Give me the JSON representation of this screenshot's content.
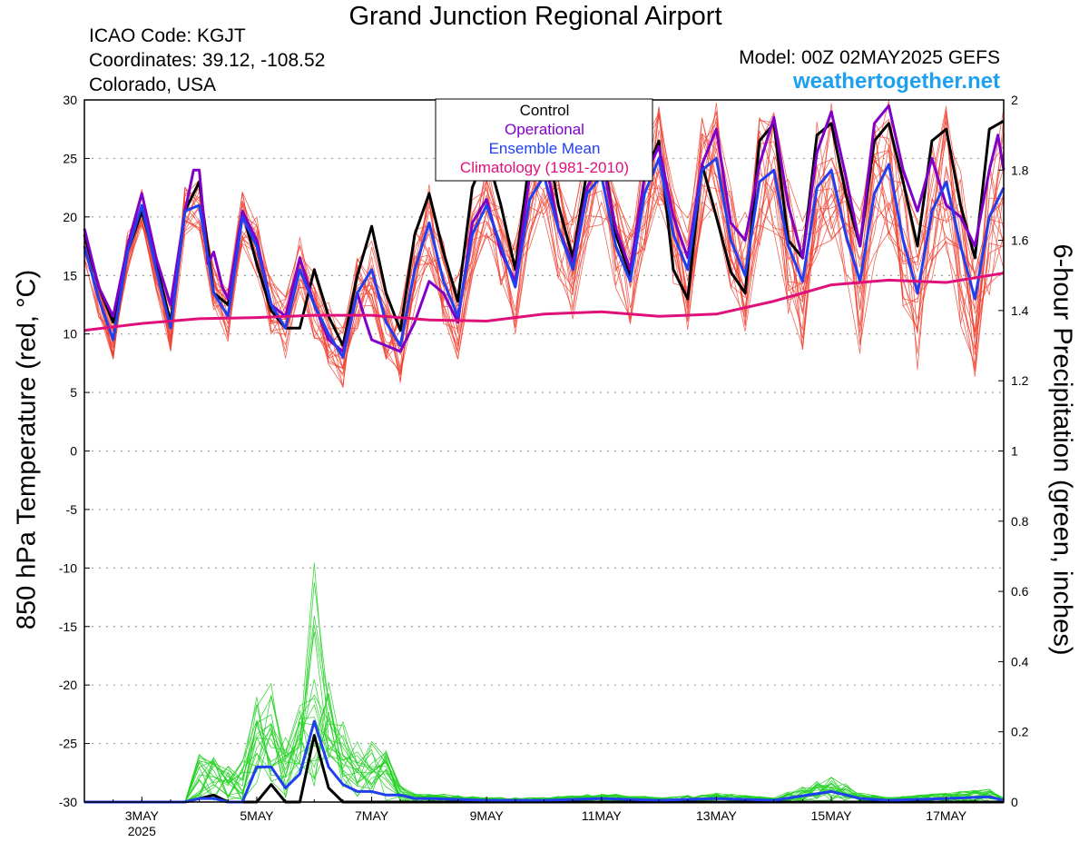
{
  "header": {
    "title": "Grand Junction Regional Airport",
    "icao": "ICAO Code: KGJT",
    "coordinates": "Coordinates: 39.12, -108.52",
    "region": "Colorado, USA",
    "model": "Model: 00Z 02MAY2025 GEFS",
    "website": "weathertogether.net"
  },
  "colors": {
    "control": "#000000",
    "operational": "#8000c8",
    "ensemble_mean": "#2040f0",
    "climatology": "#e0107a",
    "members_temp": "#f04030",
    "members_precip": "#20d020",
    "website": "#1ea0f0"
  },
  "chart_data": {
    "type": "line",
    "xlabel": "",
    "ylabel": "850 hPa Temperature (red, °C)",
    "y2label": "6-hour Precipitation (green, inches)",
    "ylim": [
      -30,
      30
    ],
    "y2lim": [
      0,
      2
    ],
    "xlim": [
      2.0,
      18.0
    ],
    "x_unit": "day of May 2025 (UTC)",
    "x_ticks": [
      {
        "x": 3.0,
        "label": "3MAY",
        "sublabel": "2025"
      },
      {
        "x": 5.0,
        "label": "5MAY"
      },
      {
        "x": 7.0,
        "label": "7MAY"
      },
      {
        "x": 9.0,
        "label": "9MAY"
      },
      {
        "x": 11.0,
        "label": "11MAY"
      },
      {
        "x": 13.0,
        "label": "13MAY"
      },
      {
        "x": 15.0,
        "label": "15MAY"
      },
      {
        "x": 17.0,
        "label": "17MAY"
      }
    ],
    "y_ticks": [
      -30,
      -25,
      -20,
      -15,
      -10,
      -5,
      0,
      5,
      10,
      15,
      20,
      25,
      30
    ],
    "y2_ticks": [
      0,
      0.2,
      0.4,
      0.6,
      0.8,
      1,
      1.2,
      1.4,
      1.6,
      1.8,
      2
    ],
    "grid": true,
    "legend": {
      "placement": "top-center",
      "entries": [
        {
          "label": "Control",
          "color": "#000000"
        },
        {
          "label": "Operational",
          "color": "#8000c8"
        },
        {
          "label": "Ensemble Mean",
          "color": "#2040f0"
        },
        {
          "label": "Climatology (1981-2010)",
          "color": "#e0107a"
        }
      ]
    },
    "temperature_series": [
      {
        "name": "Control",
        "color": "#000000",
        "points": [
          [
            2.0,
            18.5
          ],
          [
            2.25,
            14.0
          ],
          [
            2.5,
            11.0
          ],
          [
            2.75,
            17.0
          ],
          [
            3.0,
            20.5
          ],
          [
            3.25,
            16.0
          ],
          [
            3.5,
            11.0
          ],
          [
            3.75,
            20.5
          ],
          [
            4.0,
            23.0
          ],
          [
            4.25,
            13.5
          ],
          [
            4.5,
            12.5
          ],
          [
            4.75,
            20.5
          ],
          [
            5.0,
            16.0
          ],
          [
            5.25,
            12.0
          ],
          [
            5.5,
            10.5
          ],
          [
            5.75,
            10.5
          ],
          [
            6.0,
            15.5
          ],
          [
            6.25,
            11.5
          ],
          [
            6.5,
            9.0
          ],
          [
            6.75,
            15.0
          ],
          [
            7.0,
            19.2
          ],
          [
            7.25,
            13.5
          ],
          [
            7.5,
            10.3
          ],
          [
            7.75,
            18.5
          ],
          [
            8.0,
            22.0
          ],
          [
            8.25,
            17.0
          ],
          [
            8.5,
            12.8
          ],
          [
            8.75,
            22.5
          ],
          [
            9.0,
            25.5
          ],
          [
            9.25,
            21.0
          ],
          [
            9.5,
            15.5
          ],
          [
            9.75,
            25.0
          ],
          [
            10.0,
            28.0
          ],
          [
            10.25,
            21.0
          ],
          [
            10.5,
            16.5
          ],
          [
            10.75,
            24.0
          ],
          [
            11.0,
            26.0
          ],
          [
            11.25,
            18.5
          ],
          [
            11.5,
            15.0
          ],
          [
            11.75,
            23.5
          ],
          [
            12.0,
            26.5
          ],
          [
            12.25,
            15.5
          ],
          [
            12.5,
            13.0
          ],
          [
            12.75,
            24.5
          ],
          [
            13.0,
            20.0
          ],
          [
            13.25,
            15.3
          ],
          [
            13.5,
            13.5
          ],
          [
            13.75,
            26.5
          ],
          [
            14.0,
            28.0
          ],
          [
            14.25,
            18.0
          ],
          [
            14.5,
            16.5
          ],
          [
            14.75,
            27.0
          ],
          [
            15.0,
            28.0
          ],
          [
            15.25,
            22.0
          ],
          [
            15.5,
            17.5
          ],
          [
            15.75,
            26.5
          ],
          [
            16.0,
            28.0
          ],
          [
            16.25,
            23.0
          ],
          [
            16.5,
            17.5
          ],
          [
            16.75,
            26.5
          ],
          [
            17.0,
            27.5
          ],
          [
            17.25,
            21.0
          ],
          [
            17.5,
            16.5
          ],
          [
            17.75,
            27.5
          ],
          [
            18.0,
            28.2
          ]
        ]
      },
      {
        "name": "Operational",
        "color": "#8000c8",
        "points": [
          [
            2.0,
            19.0
          ],
          [
            2.25,
            14.0
          ],
          [
            2.5,
            11.5
          ],
          [
            2.75,
            17.5
          ],
          [
            3.0,
            22.0
          ],
          [
            3.25,
            16.5
          ],
          [
            3.5,
            12.5
          ],
          [
            3.75,
            20.5
          ],
          [
            3.9,
            24.0
          ],
          [
            4.0,
            24.0
          ],
          [
            4.15,
            16.0
          ],
          [
            4.25,
            17.0
          ],
          [
            4.4,
            14.0
          ],
          [
            4.5,
            13.0
          ],
          [
            4.75,
            20.5
          ],
          [
            5.0,
            18.0
          ],
          [
            5.25,
            12.5
          ],
          [
            5.5,
            11.5
          ],
          [
            5.75,
            16.5
          ],
          [
            6.0,
            12.5
          ],
          [
            6.25,
            9.5
          ],
          [
            6.5,
            8.5
          ],
          [
            6.75,
            13.5
          ],
          [
            6.9,
            11.0
          ],
          [
            7.0,
            9.5
          ],
          [
            7.25,
            9.0
          ],
          [
            7.5,
            8.5
          ],
          [
            7.75,
            11.0
          ],
          [
            8.0,
            14.5
          ],
          [
            8.25,
            13.5
          ],
          [
            8.5,
            11.0
          ],
          [
            8.75,
            19.5
          ],
          [
            9.0,
            21.5
          ],
          [
            9.25,
            17.0
          ],
          [
            9.5,
            14.5
          ],
          [
            9.75,
            23.5
          ],
          [
            10.0,
            25.5
          ],
          [
            10.25,
            19.0
          ],
          [
            10.5,
            16.0
          ],
          [
            10.75,
            22.5
          ],
          [
            11.0,
            25.0
          ],
          [
            11.25,
            19.0
          ],
          [
            11.5,
            15.5
          ],
          [
            11.75,
            23.5
          ],
          [
            12.0,
            26.0
          ],
          [
            12.25,
            20.0
          ],
          [
            12.5,
            16.5
          ],
          [
            12.75,
            24.5
          ],
          [
            13.0,
            27.5
          ],
          [
            13.25,
            19.5
          ],
          [
            13.5,
            18.0
          ],
          [
            13.75,
            24.5
          ],
          [
            14.0,
            28.5
          ],
          [
            14.25,
            21.0
          ],
          [
            14.5,
            16.5
          ],
          [
            14.75,
            25.5
          ],
          [
            15.0,
            29.0
          ],
          [
            15.25,
            23.5
          ],
          [
            15.5,
            17.5
          ],
          [
            15.75,
            28.0
          ],
          [
            16.0,
            29.5
          ],
          [
            16.25,
            24.0
          ],
          [
            16.5,
            20.5
          ],
          [
            16.75,
            25.0
          ],
          [
            17.0,
            21.0
          ],
          [
            17.25,
            20.0
          ],
          [
            17.5,
            17.5
          ],
          [
            17.75,
            24.0
          ],
          [
            17.9,
            27.0
          ],
          [
            18.0,
            24.0
          ]
        ]
      },
      {
        "name": "Ensemble Mean",
        "color": "#2040f0",
        "points": [
          [
            2.0,
            17.5
          ],
          [
            2.25,
            13.0
          ],
          [
            2.5,
            9.5
          ],
          [
            2.75,
            17.0
          ],
          [
            3.0,
            21.0
          ],
          [
            3.25,
            15.5
          ],
          [
            3.5,
            10.5
          ],
          [
            3.75,
            20.5
          ],
          [
            4.0,
            21.0
          ],
          [
            4.25,
            13.5
          ],
          [
            4.5,
            11.5
          ],
          [
            4.75,
            20.0
          ],
          [
            5.0,
            17.5
          ],
          [
            5.25,
            12.5
          ],
          [
            5.5,
            10.5
          ],
          [
            5.75,
            15.5
          ],
          [
            6.0,
            12.5
          ],
          [
            6.25,
            10.0
          ],
          [
            6.5,
            8.0
          ],
          [
            6.75,
            13.5
          ],
          [
            7.0,
            15.5
          ],
          [
            7.25,
            11.0
          ],
          [
            7.5,
            9.0
          ],
          [
            7.75,
            15.5
          ],
          [
            8.0,
            19.5
          ],
          [
            8.25,
            14.5
          ],
          [
            8.5,
            11.5
          ],
          [
            8.75,
            18.5
          ],
          [
            9.0,
            21.0
          ],
          [
            9.25,
            17.5
          ],
          [
            9.5,
            14.0
          ],
          [
            9.75,
            21.5
          ],
          [
            10.0,
            23.5
          ],
          [
            10.25,
            19.0
          ],
          [
            10.5,
            15.5
          ],
          [
            10.75,
            22.0
          ],
          [
            11.0,
            23.5
          ],
          [
            11.25,
            17.5
          ],
          [
            11.5,
            14.5
          ],
          [
            11.75,
            22.0
          ],
          [
            12.0,
            25.0
          ],
          [
            12.25,
            18.5
          ],
          [
            12.5,
            15.5
          ],
          [
            12.75,
            24.0
          ],
          [
            13.0,
            25.0
          ],
          [
            13.25,
            18.0
          ],
          [
            13.5,
            15.0
          ],
          [
            13.75,
            23.0
          ],
          [
            14.0,
            24.0
          ],
          [
            14.25,
            17.5
          ],
          [
            14.5,
            14.5
          ],
          [
            14.75,
            22.5
          ],
          [
            15.0,
            24.0
          ],
          [
            15.25,
            18.5
          ],
          [
            15.5,
            14.5
          ],
          [
            15.75,
            22.0
          ],
          [
            16.0,
            24.5
          ],
          [
            16.25,
            18.0
          ],
          [
            16.5,
            13.5
          ],
          [
            16.75,
            20.5
          ],
          [
            17.0,
            23.0
          ],
          [
            17.25,
            17.5
          ],
          [
            17.5,
            13.0
          ],
          [
            17.75,
            20.0
          ],
          [
            18.0,
            22.5
          ]
        ]
      },
      {
        "name": "Climatology (1981-2010)",
        "color": "#e0107a",
        "points": [
          [
            2.0,
            10.3
          ],
          [
            3.0,
            10.9
          ],
          [
            4.0,
            11.3
          ],
          [
            5.0,
            11.4
          ],
          [
            6.0,
            11.6
          ],
          [
            7.0,
            11.6
          ],
          [
            8.0,
            11.2
          ],
          [
            9.0,
            11.1
          ],
          [
            10.0,
            11.7
          ],
          [
            11.0,
            11.9
          ],
          [
            12.0,
            11.5
          ],
          [
            13.0,
            11.7
          ],
          [
            14.0,
            12.8
          ],
          [
            15.0,
            14.2
          ],
          [
            16.0,
            14.6
          ],
          [
            17.0,
            14.4
          ],
          [
            18.0,
            15.2
          ]
        ]
      }
    ],
    "precipitation_series": [
      {
        "name": "Control",
        "color": "#000000",
        "points": [
          [
            2.0,
            0
          ],
          [
            3.75,
            0
          ],
          [
            4.25,
            0.02
          ],
          [
            4.5,
            0
          ],
          [
            5.0,
            0
          ],
          [
            5.25,
            0.05
          ],
          [
            5.5,
            0
          ],
          [
            5.75,
            0
          ],
          [
            6.0,
            0.19
          ],
          [
            6.25,
            0.04
          ],
          [
            6.5,
            0
          ],
          [
            18.0,
            0
          ]
        ]
      },
      {
        "name": "Ensemble Mean",
        "color": "#2040f0",
        "points": [
          [
            2.0,
            0
          ],
          [
            3.75,
            0
          ],
          [
            4.0,
            0.01
          ],
          [
            4.25,
            0.01
          ],
          [
            4.5,
            0
          ],
          [
            4.75,
            0
          ],
          [
            5.0,
            0.1
          ],
          [
            5.25,
            0.1
          ],
          [
            5.5,
            0.04
          ],
          [
            5.75,
            0.08
          ],
          [
            6.0,
            0.23
          ],
          [
            6.25,
            0.1
          ],
          [
            6.5,
            0.05
          ],
          [
            6.75,
            0.03
          ],
          [
            7.0,
            0.03
          ],
          [
            7.25,
            0.02
          ],
          [
            7.5,
            0.02
          ],
          [
            7.75,
            0.01
          ],
          [
            8.0,
            0.01
          ],
          [
            9.0,
            0.005
          ],
          [
            10.0,
            0.005
          ],
          [
            11.0,
            0.01
          ],
          [
            12.0,
            0.005
          ],
          [
            13.0,
            0.01
          ],
          [
            14.0,
            0.005
          ],
          [
            15.0,
            0.03
          ],
          [
            15.5,
            0.01
          ],
          [
            16.0,
            0.005
          ],
          [
            17.0,
            0.01
          ],
          [
            17.75,
            0.015
          ],
          [
            18.0,
            0.005
          ]
        ]
      }
    ]
  }
}
